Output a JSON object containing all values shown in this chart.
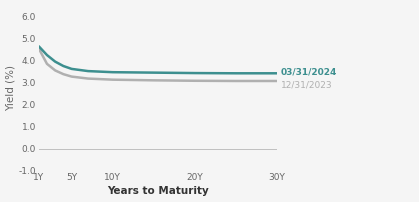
{
  "title": "",
  "xlabel": "Years to Maturity",
  "ylabel": "Yield (%)",
  "ylim": [
    -1.0,
    6.5
  ],
  "yticks": [
    -1.0,
    0.0,
    1.0,
    2.0,
    3.0,
    4.0,
    5.0,
    6.0
  ],
  "xtick_positions": [
    1,
    5,
    10,
    20,
    30
  ],
  "xtick_labels": [
    "1Y",
    "5Y",
    "10Y",
    "20Y",
    "30Y"
  ],
  "x_maturities": [
    1,
    2,
    3,
    4,
    5,
    7,
    10,
    15,
    20,
    25,
    30
  ],
  "q1_2024_yields": [
    4.65,
    4.25,
    3.95,
    3.75,
    3.62,
    3.52,
    3.47,
    3.45,
    3.43,
    3.42,
    3.42
  ],
  "q4_2023_yields": [
    4.55,
    3.85,
    3.55,
    3.38,
    3.27,
    3.18,
    3.13,
    3.1,
    3.08,
    3.07,
    3.07
  ],
  "q1_color": "#3d8f8f",
  "q4_color": "#b0b0b0",
  "q1_label": "03/31/2024",
  "q4_label": "12/31/2023",
  "line_width": 1.8,
  "background_color": "#f5f5f5",
  "zero_line_color": "#c0c0c0",
  "tick_color": "#666666",
  "label_fontsize": 7.5,
  "tick_fontsize": 6.5,
  "annotation_fontsize": 6.5,
  "ylabel_fontsize": 7.5
}
